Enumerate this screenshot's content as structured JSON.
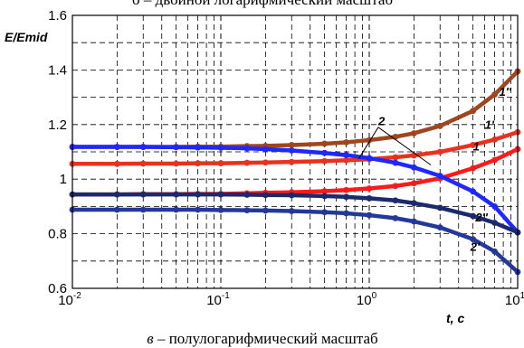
{
  "top_caption": "б – двойной логарифмический масштаб",
  "bottom_caption": {
    "letter": "в",
    "text": " – полулогарифмический масштаб"
  },
  "chart_data": {
    "type": "line",
    "ylabel": "E/Emid",
    "xlabel": "t, c",
    "x_scale": "log",
    "xlim": [
      0.01,
      10
    ],
    "ylim": [
      0.6,
      1.6
    ],
    "grid": true,
    "x_tick_labels": [
      {
        "base": "10",
        "exp": "-2",
        "value": 0.01
      },
      {
        "base": "10",
        "exp": "-1",
        "value": 0.1
      },
      {
        "base": "10",
        "exp": "0",
        "value": 1
      },
      {
        "base": "10",
        "exp": "1",
        "value": 10
      }
    ],
    "y_ticks": [
      {
        "label": "0.6",
        "value": 0.6
      },
      {
        "label": "0.8",
        "value": 0.8
      },
      {
        "label": "1",
        "value": 1.0
      },
      {
        "label": "1.2",
        "value": 1.2
      },
      {
        "label": "1.4",
        "value": 1.4
      },
      {
        "label": "1.6",
        "value": 1.6
      }
    ],
    "x": [
      0.01,
      0.02,
      0.03,
      0.05,
      0.07,
      0.1,
      0.15,
      0.2,
      0.3,
      0.5,
      0.7,
      1.0,
      1.5,
      2.0,
      3.0,
      5.0,
      7.0,
      10.0
    ],
    "series": [
      {
        "name": "1''",
        "color": "#a0461e",
        "values": [
          1.118,
          1.118,
          1.118,
          1.118,
          1.119,
          1.119,
          1.121,
          1.122,
          1.125,
          1.13,
          1.135,
          1.143,
          1.155,
          1.168,
          1.195,
          1.25,
          1.31,
          1.395
        ]
      },
      {
        "name": "1'",
        "color": "#e8321e",
        "values": [
          1.056,
          1.056,
          1.057,
          1.057,
          1.058,
          1.058,
          1.06,
          1.061,
          1.063,
          1.066,
          1.069,
          1.073,
          1.08,
          1.087,
          1.1,
          1.125,
          1.145,
          1.172
        ]
      },
      {
        "name": "1",
        "color": "#ff1a1a",
        "values": [
          0.944,
          0.944,
          0.945,
          0.945,
          0.946,
          0.946,
          0.948,
          0.95,
          0.952,
          0.956,
          0.96,
          0.966,
          0.975,
          0.985,
          1.003,
          1.04,
          1.07,
          1.11
        ]
      },
      {
        "name": "2",
        "color": "#1e28ff",
        "values": [
          1.118,
          1.118,
          1.118,
          1.117,
          1.116,
          1.115,
          1.113,
          1.11,
          1.105,
          1.096,
          1.088,
          1.077,
          1.06,
          1.043,
          1.012,
          0.955,
          0.9,
          0.805
        ]
      },
      {
        "name": "2''",
        "color": "#1a2a6c",
        "values": [
          0.944,
          0.944,
          0.944,
          0.944,
          0.944,
          0.944,
          0.943,
          0.942,
          0.941,
          0.938,
          0.935,
          0.93,
          0.922,
          0.912,
          0.895,
          0.865,
          0.84,
          0.805
        ]
      },
      {
        "name": "2'",
        "color": "#24389a",
        "values": [
          0.888,
          0.888,
          0.888,
          0.888,
          0.888,
          0.887,
          0.886,
          0.885,
          0.883,
          0.879,
          0.875,
          0.868,
          0.857,
          0.845,
          0.823,
          0.78,
          0.735,
          0.66
        ]
      }
    ],
    "annotations": [
      {
        "text": "1''",
        "x": 7.5,
        "y": 1.305
      },
      {
        "text": "1'",
        "x": 6.0,
        "y": 1.185
      },
      {
        "text": "1",
        "x": 5.0,
        "y": 1.105
      },
      {
        "text": "2",
        "x": 1.15,
        "y": 1.198
      },
      {
        "text": "2''",
        "x": 5.2,
        "y": 0.845
      },
      {
        "text": "2'",
        "x": 4.8,
        "y": 0.738
      }
    ],
    "leader_lines": [
      {
        "from": [
          1.15,
          1.19
        ],
        "to": [
          0.85,
          1.075
        ]
      },
      {
        "from": [
          1.15,
          1.19
        ],
        "to": [
          2.6,
          1.052
        ]
      }
    ]
  }
}
